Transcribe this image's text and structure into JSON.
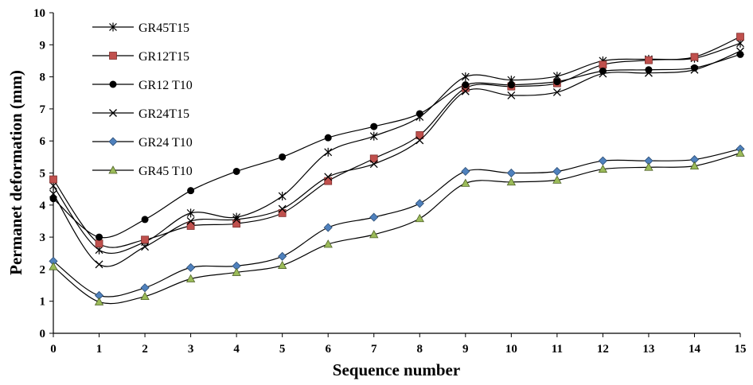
{
  "chart_data": {
    "type": "line",
    "xlabel": "Sequence number",
    "ylabel": "Permanet deformation (mm)",
    "xlim": [
      0,
      15
    ],
    "ylim": [
      0,
      10
    ],
    "x": [
      0,
      1,
      2,
      3,
      4,
      5,
      6,
      7,
      8,
      9,
      10,
      11,
      12,
      13,
      14,
      15
    ],
    "xticks": [
      "0",
      "1",
      "2",
      "3",
      "4",
      "5",
      "6",
      "7",
      "8",
      "9",
      "10",
      "11",
      "12",
      "13",
      "14",
      "15"
    ],
    "yticks": [
      "0",
      "1",
      "2",
      "3",
      "4",
      "5",
      "6",
      "7",
      "8",
      "9",
      "10"
    ],
    "grid": false,
    "legend_position": "top-left",
    "series": [
      {
        "name": "GR45T15",
        "marker": "asterisk",
        "color": "#000000",
        "values": [
          4.6,
          2.6,
          2.85,
          3.75,
          3.62,
          4.28,
          5.65,
          6.15,
          6.75,
          8.0,
          7.9,
          8.02,
          8.5,
          8.55,
          8.58,
          9.05
        ]
      },
      {
        "name": "GR12T15",
        "marker": "square",
        "color": "#c0504d",
        "values": [
          4.8,
          2.8,
          2.92,
          3.35,
          3.42,
          3.75,
          4.75,
          5.45,
          6.18,
          7.65,
          7.7,
          7.8,
          8.38,
          8.52,
          8.62,
          9.25
        ]
      },
      {
        "name": "GR12 T10",
        "marker": "circle",
        "color": "#000000",
        "values": [
          4.2,
          3.0,
          3.55,
          4.45,
          5.05,
          5.5,
          6.1,
          6.45,
          6.85,
          7.75,
          7.75,
          7.85,
          8.18,
          8.22,
          8.28,
          8.7
        ]
      },
      {
        "name": "GR24T15",
        "marker": "x",
        "color": "#000000",
        "values": [
          4.35,
          2.15,
          2.7,
          3.5,
          3.55,
          3.88,
          4.88,
          5.28,
          6.02,
          7.55,
          7.42,
          7.52,
          8.1,
          8.12,
          8.22,
          8.8
        ]
      },
      {
        "name": "GR24 T10",
        "marker": "diamond",
        "color": "#4f81bd",
        "values": [
          2.25,
          1.18,
          1.42,
          2.05,
          2.1,
          2.4,
          3.3,
          3.62,
          4.05,
          5.05,
          5.0,
          5.05,
          5.38,
          5.38,
          5.42,
          5.75
        ]
      },
      {
        "name": "GR45 T10",
        "marker": "triangle",
        "color": "#9bbb59",
        "values": [
          2.08,
          0.98,
          1.15,
          1.7,
          1.9,
          2.12,
          2.78,
          3.08,
          3.58,
          4.68,
          4.72,
          4.78,
          5.12,
          5.18,
          5.22,
          5.62
        ]
      }
    ]
  }
}
